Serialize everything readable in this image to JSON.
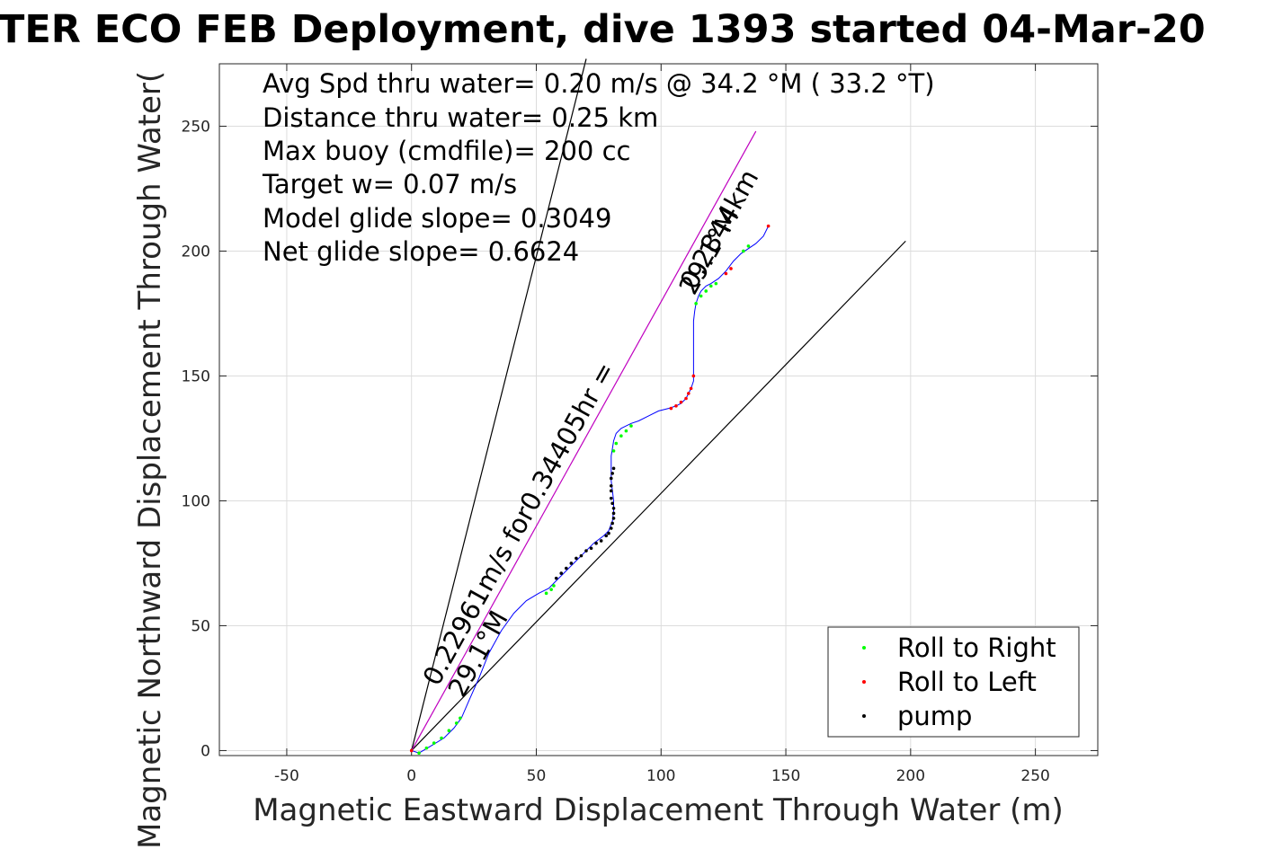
{
  "chart_data": {
    "type": "scatter",
    "title": "TER ECO FEB Deployment, dive 1393 started 04-Mar-20",
    "xlabel": "Magnetic Eastward Displacement Through Water (m)",
    "ylabel": "Magnetic Northward Displacement Through Water(",
    "xlim": [
      -77,
      275
    ],
    "ylim": [
      -2,
      275
    ],
    "xticks": [
      -50,
      0,
      50,
      100,
      150,
      200,
      250
    ],
    "yticks": [
      0,
      50,
      100,
      150,
      200,
      250
    ],
    "xtick_labels": [
      "-50",
      "0",
      "50",
      "100",
      "150",
      "200",
      "250"
    ],
    "ytick_labels": [
      "0",
      "50",
      "100",
      "150",
      "200",
      "250"
    ],
    "grid": true,
    "legend_position": "bottom-right",
    "annotations": [
      "Avg Spd thru water=  0.20 m/s @  34.2 °M ( 33.2 °T)",
      "Distance thru water=  0.25 km",
      "Max buoy (cmdfile)= 200 cc",
      "Target w= 0.07 m/s",
      "Model glide slope= 0.3049",
      "Net glide slope= 0.6624"
    ],
    "line_labels": {
      "upper": "0.2844km",
      "upper_heading": "29.1°M",
      "lower": "0.22961m/s for0.34405hr =",
      "lower_heading": "29.1°M"
    },
    "reference_lines": [
      {
        "name": "glide-cone-left",
        "color": "#000000",
        "x": [
          0,
          70
        ],
        "y": [
          0,
          277
        ]
      },
      {
        "name": "glide-cone-right",
        "color": "#000000",
        "x": [
          0,
          198
        ],
        "y": [
          0,
          204
        ]
      },
      {
        "name": "heading-line",
        "color": "#bf00bf",
        "x": [
          0,
          138
        ],
        "y": [
          0,
          248
        ]
      }
    ],
    "track": {
      "color": "#0000ff",
      "x": [
        0,
        3,
        8,
        13,
        17,
        20,
        23,
        27,
        31,
        36,
        41,
        46,
        51,
        55,
        58,
        61,
        65,
        69,
        73,
        77,
        79,
        80.5,
        81,
        81,
        80.5,
        80,
        80,
        80,
        80,
        80.5,
        81,
        82,
        84,
        86,
        88,
        91,
        95,
        99,
        103,
        106,
        108,
        110,
        111,
        112,
        113,
        113,
        113,
        113,
        113,
        113.5,
        114,
        115,
        116,
        118,
        120,
        123,
        126,
        129,
        132,
        135,
        138,
        141,
        143
      ],
      "y": [
        0,
        -1,
        2,
        5,
        9,
        13,
        20,
        29,
        39,
        48,
        55,
        60,
        63,
        65,
        68,
        71,
        75,
        79,
        83,
        86,
        88,
        92,
        96,
        100,
        104,
        108,
        112,
        115,
        118,
        121,
        124,
        127,
        129,
        130,
        131,
        132,
        134,
        136,
        137,
        138,
        139,
        141,
        143,
        145,
        148,
        151,
        158,
        166,
        172,
        176,
        179,
        182,
        184,
        186,
        187,
        189,
        192,
        196,
        199,
        201,
        203,
        206,
        210
      ]
    },
    "series": [
      {
        "name": "Roll to Right",
        "color": "#00ff00",
        "x": [
          3,
          6,
          9,
          12,
          15,
          18,
          19.5,
          54,
          56,
          57,
          88,
          86,
          84,
          82,
          81,
          114,
          116,
          118,
          120,
          122,
          133,
          135
        ],
        "y": [
          -1,
          1,
          3,
          5,
          8,
          11,
          13,
          63,
          64.5,
          66,
          130,
          128,
          126,
          123,
          120,
          179,
          182,
          184,
          186,
          187,
          200,
          202
        ]
      },
      {
        "name": "Roll to Left",
        "color": "#ff0000",
        "x": [
          0,
          104,
          106,
          108,
          110,
          111,
          112,
          113,
          126,
          128,
          143
        ],
        "y": [
          0,
          137,
          138,
          139.5,
          141,
          143,
          145,
          150,
          191,
          193,
          210
        ]
      },
      {
        "name": "pump",
        "color": "#000000",
        "x": [
          58,
          60,
          62,
          64,
          66,
          68,
          70,
          72,
          74,
          76,
          78,
          79,
          80,
          80.5,
          81,
          81,
          81,
          80.5,
          80,
          80,
          80,
          80,
          80.5,
          81
        ],
        "y": [
          69,
          71,
          73,
          75,
          77,
          78,
          80,
          81,
          83,
          84,
          86,
          87,
          89,
          91,
          93,
          95,
          97,
          99,
          101,
          104,
          106,
          109,
          111,
          113
        ]
      }
    ]
  }
}
